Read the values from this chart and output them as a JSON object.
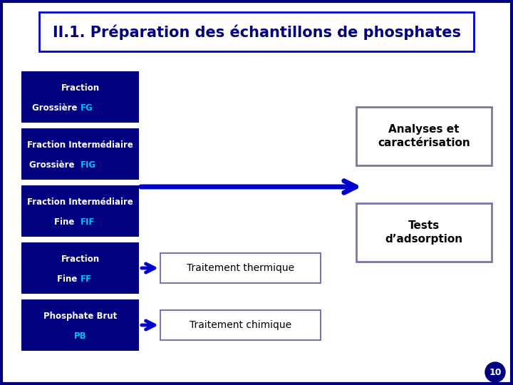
{
  "title": "II.1. Préparation des échantillons de phosphates",
  "dark_blue": "#000080",
  "bright_blue": "#0000CC",
  "arrow_blue": "#0000CC",
  "white": "#FFFFFF",
  "cyan": "#00BFFF",
  "page_number": "10",
  "left_boxes": [
    {
      "line1": "Fraction",
      "line2": "Grossière ",
      "accent": "FG"
    },
    {
      "line1": "Fraction Intermédiaire",
      "line2": "Grossière  ",
      "accent": "FIG"
    },
    {
      "line1": "Fraction Intermédiaire",
      "line2": "Fine  ",
      "accent": "FIF"
    },
    {
      "line1": "Fraction",
      "line2": "Fine ",
      "accent": "FF"
    },
    {
      "line1": "Phosphate Brut",
      "line2": "",
      "accent": "PB"
    }
  ]
}
